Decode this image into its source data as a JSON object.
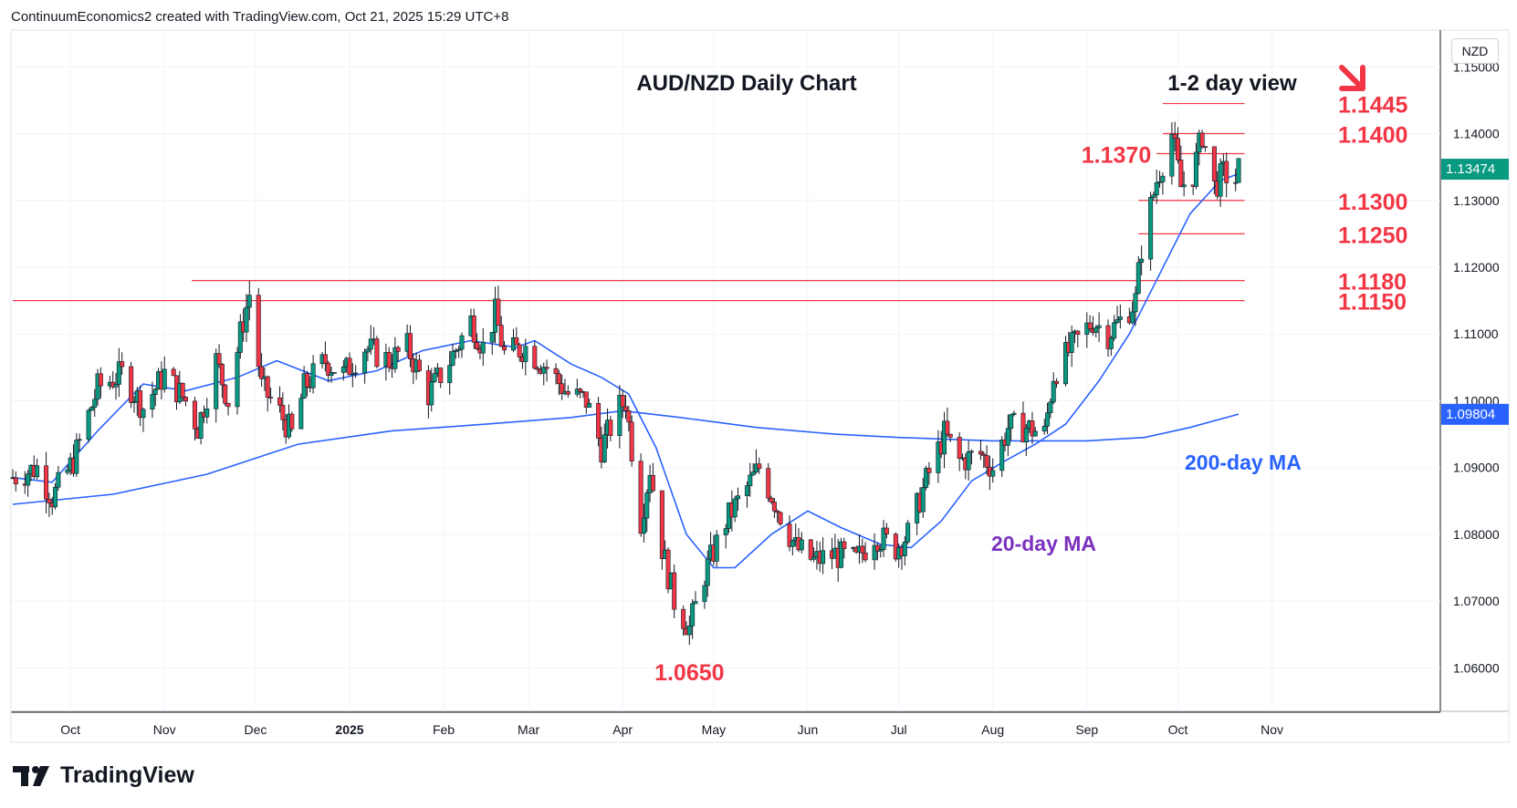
{
  "header": {
    "caption": "ContinuumEconomics2 created with TradingView.com, Oct 21, 2025 15:29 UTC+8"
  },
  "axis": {
    "currency": "NZD"
  },
  "brand": {
    "name": "TradingView"
  },
  "colors": {
    "up": "#089981",
    "down": "#f23645",
    "level": "#f23645",
    "ma20": "#2962ff",
    "ma200": "#2962ff",
    "text": "#131722",
    "ma20_label": "#7b2fbf",
    "ma200_label": "#2962ff"
  },
  "chart_data": {
    "type": "candlestick",
    "title": "AUD/NZD Daily Chart",
    "subtitle": "1-2 day view",
    "direction_arrow": "down-right",
    "y_axis": {
      "range": [
        1.0535,
        1.1555
      ],
      "ticks": [
        "1.15000",
        "1.14000",
        "1.13000",
        "1.12000",
        "1.11000",
        "1.10000",
        "1.09000",
        "1.08000",
        "1.07000",
        "1.06000"
      ],
      "last_price_label": "1.13474",
      "ma200_price_label": "1.09804",
      "gridlines": true
    },
    "x_axis": {
      "ticks": [
        {
          "label": "Oct",
          "date": "2024-10-01"
        },
        {
          "label": "Nov",
          "date": "2024-11-01"
        },
        {
          "label": "Dec",
          "date": "2024-12-01"
        },
        {
          "label": "2025",
          "date": "2025-01-01",
          "bold": true
        },
        {
          "label": "Feb",
          "date": "2025-02-01"
        },
        {
          "label": "Mar",
          "date": "2025-03-01"
        },
        {
          "label": "Apr",
          "date": "2025-04-01"
        },
        {
          "label": "May",
          "date": "2025-05-01"
        },
        {
          "label": "Jun",
          "date": "2025-06-01"
        },
        {
          "label": "Jul",
          "date": "2025-07-01"
        },
        {
          "label": "Aug",
          "date": "2025-08-01"
        },
        {
          "label": "Sep",
          "date": "2025-09-01"
        },
        {
          "label": "Oct",
          "date": "2025-10-01"
        },
        {
          "label": "Nov",
          "date": "2025-11-01"
        }
      ]
    },
    "series": [
      {
        "name": "20-day MA",
        "points": [
          [
            "2024-09-12",
            1.0885
          ],
          [
            "2024-09-25",
            1.0878
          ],
          [
            "2024-10-10",
            1.0955
          ],
          [
            "2024-10-25",
            1.1025
          ],
          [
            "2024-11-08",
            1.1015
          ],
          [
            "2024-11-25",
            1.1035
          ],
          [
            "2024-12-08",
            1.106
          ],
          [
            "2024-12-25",
            1.103
          ],
          [
            "2025-01-10",
            1.1045
          ],
          [
            "2025-01-25",
            1.1075
          ],
          [
            "2025-02-10",
            1.109
          ],
          [
            "2025-02-25",
            1.108
          ],
          [
            "2025-03-03",
            1.109
          ],
          [
            "2025-03-15",
            1.1055
          ],
          [
            "2025-03-25",
            1.1035
          ],
          [
            "2025-04-03",
            1.101
          ],
          [
            "2025-04-12",
            1.093
          ],
          [
            "2025-04-22",
            1.08
          ],
          [
            "2025-05-01",
            1.075
          ],
          [
            "2025-05-08",
            1.075
          ],
          [
            "2025-05-20",
            1.08
          ],
          [
            "2025-06-01",
            1.0835
          ],
          [
            "2025-06-12",
            1.081
          ],
          [
            "2025-06-25",
            1.0785
          ],
          [
            "2025-07-05",
            1.078
          ],
          [
            "2025-07-15",
            1.082
          ],
          [
            "2025-07-25",
            1.088
          ],
          [
            "2025-08-05",
            1.091
          ],
          [
            "2025-08-15",
            1.0935
          ],
          [
            "2025-08-25",
            1.0965
          ],
          [
            "2025-09-05",
            1.103
          ],
          [
            "2025-09-15",
            1.11
          ],
          [
            "2025-09-25",
            1.119
          ],
          [
            "2025-10-05",
            1.128
          ],
          [
            "2025-10-15",
            1.133
          ],
          [
            "2025-10-21",
            1.134
          ]
        ]
      },
      {
        "name": "200-day MA",
        "points": [
          [
            "2024-09-12",
            1.0845
          ],
          [
            "2024-10-15",
            1.086
          ],
          [
            "2024-11-15",
            1.089
          ],
          [
            "2024-12-15",
            1.0935
          ],
          [
            "2025-01-15",
            1.0955
          ],
          [
            "2025-02-15",
            1.0965
          ],
          [
            "2025-03-15",
            1.0975
          ],
          [
            "2025-04-01",
            1.0985
          ],
          [
            "2025-04-20",
            1.0975
          ],
          [
            "2025-05-15",
            1.096
          ],
          [
            "2025-06-10",
            1.095
          ],
          [
            "2025-07-01",
            1.0945
          ],
          [
            "2025-08-01",
            1.094
          ],
          [
            "2025-09-01",
            1.094
          ],
          [
            "2025-09-20",
            1.0945
          ],
          [
            "2025-10-05",
            1.096
          ],
          [
            "2025-10-21",
            1.098
          ]
        ]
      }
    ],
    "levels": [
      {
        "label": "1.1445",
        "value": 1.1445,
        "from": "2025-09-26",
        "to": "2025-10-23",
        "label_side": "right"
      },
      {
        "label": "1.1400",
        "value": 1.14,
        "from": "2025-09-26",
        "to": "2025-10-23",
        "label_side": "right"
      },
      {
        "label": "1.1370",
        "value": 1.137,
        "from": "2025-09-24",
        "to": "2025-10-23",
        "label_side": "left"
      },
      {
        "label": "1.1300",
        "value": 1.13,
        "from": "2025-09-18",
        "to": "2025-10-23",
        "label_side": "right"
      },
      {
        "label": "1.1250",
        "value": 1.125,
        "from": "2025-09-18",
        "to": "2025-10-23",
        "label_side": "right"
      },
      {
        "label": "1.1180",
        "value": 1.118,
        "from": "2024-11-10",
        "to": "2025-10-23",
        "label_side": "right"
      },
      {
        "label": "1.1150",
        "value": 1.115,
        "from": "2024-09-12",
        "to": "2025-10-23",
        "label_side": "right"
      }
    ],
    "annotations": [
      {
        "label": "1.0650",
        "value": 1.065,
        "date": "2025-04-23",
        "type": "low"
      },
      {
        "label": "20-day MA",
        "type": "series-label"
      },
      {
        "label": "200-day MA",
        "type": "series-label"
      }
    ],
    "price_path": [
      [
        "2024-09-12",
        1.0885
      ],
      [
        "2024-09-20",
        1.09
      ],
      [
        "2024-09-25",
        1.0855
      ],
      [
        "2024-10-02",
        1.091
      ],
      [
        "2024-10-10",
        1.102
      ],
      [
        "2024-10-18",
        1.104
      ],
      [
        "2024-10-25",
        1.099
      ],
      [
        "2024-11-01",
        1.104
      ],
      [
        "2024-11-08",
        1.1
      ],
      [
        "2024-11-12",
        1.096
      ],
      [
        "2024-11-18",
        1.106
      ],
      [
        "2024-11-22",
        1.1
      ],
      [
        "2024-11-26",
        1.11
      ],
      [
        "2024-11-29",
        1.116
      ],
      [
        "2024-12-03",
        1.102
      ],
      [
        "2024-12-08",
        1.099
      ],
      [
        "2024-12-13",
        1.095
      ],
      [
        "2024-12-17",
        1.102
      ],
      [
        "2024-12-24",
        1.106
      ],
      [
        "2024-12-30",
        1.104
      ],
      [
        "2025-01-06",
        1.108
      ],
      [
        "2025-01-14",
        1.106
      ],
      [
        "2025-01-20",
        1.108
      ],
      [
        "2025-01-27",
        1.101
      ],
      [
        "2025-02-03",
        1.106
      ],
      [
        "2025-02-10",
        1.112
      ],
      [
        "2025-02-14",
        1.108
      ],
      [
        "2025-02-18",
        1.113
      ],
      [
        "2025-02-21",
        1.107
      ],
      [
        "2025-02-28",
        1.108
      ],
      [
        "2025-03-07",
        1.105
      ],
      [
        "2025-03-14",
        1.101
      ],
      [
        "2025-03-20",
        1.1
      ],
      [
        "2025-03-25",
        1.093
      ],
      [
        "2025-03-31",
        1.099
      ],
      [
        "2025-04-02",
        1.1
      ],
      [
        "2025-04-07",
        1.082
      ],
      [
        "2025-04-10",
        1.09
      ],
      [
        "2025-04-14",
        1.078
      ],
      [
        "2025-04-18",
        1.07
      ],
      [
        "2025-04-23",
        1.066
      ],
      [
        "2025-04-28",
        1.074
      ],
      [
        "2025-05-05",
        1.082
      ],
      [
        "2025-05-12",
        1.087
      ],
      [
        "2025-05-16",
        1.09
      ],
      [
        "2025-05-22",
        1.084
      ],
      [
        "2025-05-28",
        1.078
      ],
      [
        "2025-06-03",
        1.076
      ],
      [
        "2025-06-10",
        1.077
      ],
      [
        "2025-06-17",
        1.076
      ],
      [
        "2025-06-23",
        1.08
      ],
      [
        "2025-06-30",
        1.078
      ],
      [
        "2025-07-04",
        1.08
      ],
      [
        "2025-07-10",
        1.088
      ],
      [
        "2025-07-16",
        1.095
      ],
      [
        "2025-07-21",
        1.091
      ],
      [
        "2025-07-28",
        1.092
      ],
      [
        "2025-08-01",
        1.09
      ],
      [
        "2025-08-06",
        1.096
      ],
      [
        "2025-08-12",
        1.096
      ],
      [
        "2025-08-18",
        1.095
      ],
      [
        "2025-08-21",
        1.104
      ],
      [
        "2025-08-27",
        1.108
      ],
      [
        "2025-09-03",
        1.112
      ],
      [
        "2025-09-08",
        1.11
      ],
      [
        "2025-09-12",
        1.112
      ],
      [
        "2025-09-17",
        1.115
      ],
      [
        "2025-09-19",
        1.123
      ],
      [
        "2025-09-24",
        1.133
      ],
      [
        "2025-09-29",
        1.14
      ],
      [
        "2025-10-02",
        1.132
      ],
      [
        "2025-10-06",
        1.134
      ],
      [
        "2025-10-09",
        1.14
      ],
      [
        "2025-10-13",
        1.132
      ],
      [
        "2025-10-16",
        1.134
      ],
      [
        "2025-10-20",
        1.133
      ],
      [
        "2025-10-21",
        1.1347
      ]
    ]
  }
}
